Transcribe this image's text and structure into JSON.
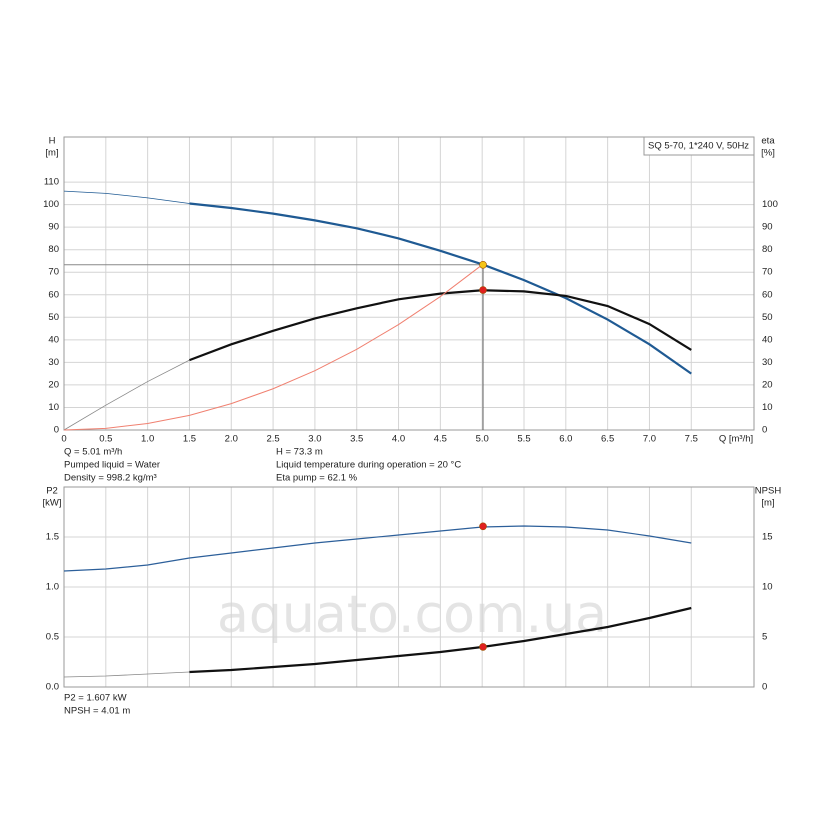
{
  "watermark": "aquato.com.ua",
  "chart_data": [
    {
      "type": "line",
      "pump_label": "SQ 5-70, 1*240 V, 50Hz",
      "y_label": "H",
      "y_unit": "[m]",
      "y2_label": "eta",
      "y2_unit": "[%]",
      "x_label": "Q [m³/h]",
      "xlim": [
        0,
        8.25
      ],
      "xticks": [
        0,
        0.5,
        {
          "value": 1,
          "label": "1.0"
        },
        1.5,
        {
          "value": 2,
          "label": "2.0"
        },
        2.5,
        {
          "value": 3,
          "label": "3.0"
        },
        3.5,
        {
          "value": 4,
          "label": "4.0"
        },
        4.5,
        {
          "value": 5,
          "label": "5.0"
        },
        5.5,
        {
          "value": 6,
          "label": "6.0"
        },
        6.5,
        {
          "value": 7,
          "label": "7.0"
        },
        7.5
      ],
      "ylim": [
        0,
        130
      ],
      "yticks": [
        0,
        10,
        20,
        30,
        40,
        50,
        60,
        70,
        80,
        90,
        100,
        110
      ],
      "y2lim": [
        0,
        130
      ],
      "y2ticks": [
        0,
        10,
        20,
        30,
        40,
        50,
        60,
        70,
        80,
        90,
        100
      ],
      "grid": true,
      "x": [
        0,
        0.5,
        1,
        1.5,
        2,
        2.5,
        3,
        3.5,
        4,
        4.5,
        5,
        5.5,
        6,
        6.5,
        7,
        7.5
      ],
      "series": [
        {
          "color": "#1f5a93",
          "thick_from": 1.5,
          "values": [
            106,
            105,
            103,
            100.5,
            98.5,
            96,
            93,
            89.5,
            85,
            79.5,
            73.5,
            66.5,
            58.5,
            49,
            38,
            25
          ]
        },
        {
          "color": "#111111",
          "axis": "y2",
          "thick_from": 1.5,
          "values": [
            0,
            11,
            21.5,
            31,
            38,
            44,
            49.5,
            54,
            58,
            60.5,
            62,
            61.5,
            59.5,
            55,
            47,
            35.5
          ]
        },
        {
          "color": "#f08070",
          "values": [
            0,
            0.7,
            2.9,
            6.5,
            11.7,
            18.3,
            26.3,
            35.8,
            46.8,
            59.2,
            73.3,
            null,
            null,
            null,
            null,
            null
          ]
        }
      ],
      "operating_point": {
        "Q": 5.01,
        "H": 73.3,
        "eta": 62.1
      },
      "info": [
        "Q = 5.01 m³/h",
        "Pumped liquid = Water",
        "Density = 998.2 kg/m³",
        "H = 73.3 m",
        "Liquid temperature during operation = 20 °C",
        "Eta pump = 62.1 %"
      ]
    },
    {
      "type": "line",
      "y_label": "P2",
      "y_unit": "[kW]",
      "y2_label": "NPSH",
      "y2_unit": "[m]",
      "xlim": [
        0,
        8.25
      ],
      "ylim": [
        0,
        2
      ],
      "yticks": [
        {
          "value": 0,
          "label": "0.0"
        },
        0.5,
        {
          "value": 1,
          "label": "1.0"
        },
        1.5
      ],
      "y2lim": [
        0,
        20
      ],
      "y2ticks": [
        0,
        5,
        10,
        15
      ],
      "grid": true,
      "x": [
        0,
        0.5,
        1,
        1.5,
        2,
        2.5,
        3,
        3.5,
        4,
        4.5,
        5,
        5.5,
        6,
        6.5,
        7,
        7.5
      ],
      "series": [
        {
          "color": "#2c5f9a",
          "values": [
            1.16,
            1.18,
            1.22,
            1.29,
            1.34,
            1.39,
            1.44,
            1.48,
            1.52,
            1.56,
            1.6,
            1.61,
            1.6,
            1.57,
            1.51,
            1.44
          ]
        },
        {
          "color": "#111111",
          "axis": "y2",
          "thick_from": 1.5,
          "values": [
            1.0,
            1.1,
            1.3,
            1.5,
            1.7,
            2.0,
            2.3,
            2.7,
            3.1,
            3.5,
            4.0,
            4.6,
            5.3,
            6.0,
            6.9,
            7.9
          ]
        }
      ],
      "operating_point": {
        "Q": 5.01,
        "P2": 1.607,
        "NPSH": 4.01
      },
      "info": [
        "P2 = 1.607 kW",
        "NPSH = 4.01 m"
      ]
    }
  ]
}
